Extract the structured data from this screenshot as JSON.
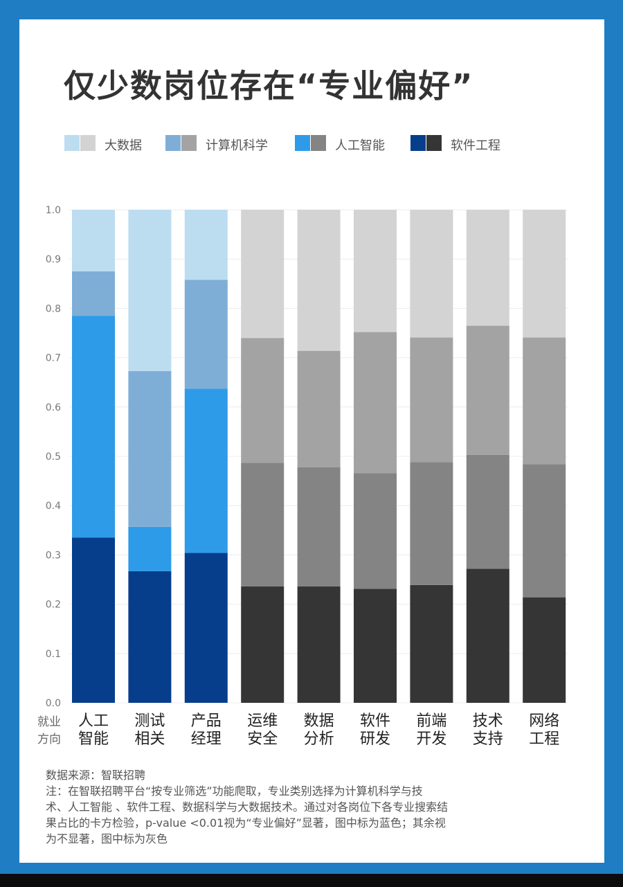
{
  "title": "仅少数岗位存在“专业偏好”",
  "legend": [
    {
      "label": "大数据",
      "blue": "#bcdcf0",
      "gray": "#d3d3d3"
    },
    {
      "label": "计算机科学",
      "blue": "#7eaed6",
      "gray": "#a3a3a3"
    },
    {
      "label": "人工智能",
      "blue": "#2e9be8",
      "gray": "#848484"
    },
    {
      "label": "软件工程",
      "blue": "#063e8c",
      "gray": "#353535"
    }
  ],
  "axis_label": [
    "就业",
    "方向"
  ],
  "chart_data": {
    "type": "bar",
    "stacked": true,
    "categories": [
      [
        "人工",
        "智能"
      ],
      [
        "测试",
        "相关"
      ],
      [
        "产品",
        "经理"
      ],
      [
        "运维",
        "安全"
      ],
      [
        "数据",
        "分析"
      ],
      [
        "软件",
        "研发"
      ],
      [
        "前端",
        "开发"
      ],
      [
        "技术",
        "支持"
      ],
      [
        "网络",
        "工程"
      ]
    ],
    "significant": [
      true,
      true,
      true,
      false,
      false,
      false,
      false,
      false,
      false
    ],
    "series": [
      {
        "name": "软件工程",
        "values": [
          0.335,
          0.267,
          0.304,
          0.236,
          0.236,
          0.231,
          0.239,
          0.272,
          0.214
        ]
      },
      {
        "name": "人工智能",
        "values": [
          0.45,
          0.09,
          0.333,
          0.251,
          0.242,
          0.235,
          0.249,
          0.231,
          0.27
        ]
      },
      {
        "name": "计算机科学",
        "values": [
          0.09,
          0.316,
          0.221,
          0.253,
          0.236,
          0.286,
          0.253,
          0.262,
          0.257
        ]
      },
      {
        "name": "大数据",
        "values": [
          0.125,
          0.327,
          0.142,
          0.26,
          0.286,
          0.248,
          0.259,
          0.235,
          0.259
        ]
      }
    ],
    "yticks": [
      "0.0",
      "0.1",
      "0.2",
      "0.3",
      "0.4",
      "0.5",
      "0.6",
      "0.7",
      "0.8",
      "0.9",
      "1.0"
    ],
    "ylim": [
      0,
      1
    ],
    "grid": true,
    "legend_position": "top"
  },
  "footnote": [
    "数据来源：智联招聘",
    "注：在智联招聘平台“按专业筛选”功能爬取，专业类别选择为计算机科学与技",
    "术、人工智能 、软件工程、数据科学与大数据技术。通过对各岗位下各专业搜索结",
    "果占比的卡方检验，p-value <0.01视为“专业偏好”显著，图中标为蓝色；其余视",
    "为不显著，图中标为灰色"
  ]
}
